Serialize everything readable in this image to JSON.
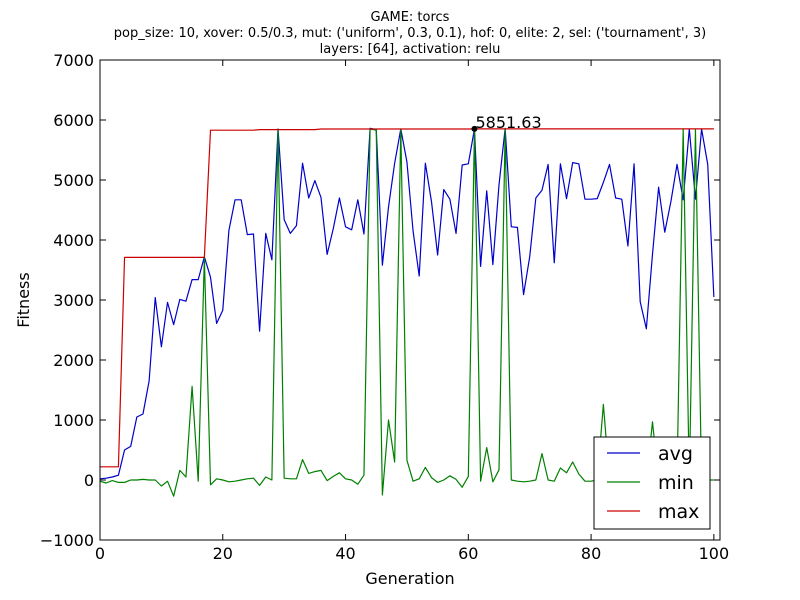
{
  "chart_data": {
    "type": "line",
    "title_lines": [
      "GAME: torcs",
      "pop_size: 10, xover: 0.5/0.3, mut: ('uniform', 0.3, 0.1), hof: 0, elite: 2, sel: ('tournament', 3)",
      "layers: [64], activation: relu"
    ],
    "xlabel": "Generation",
    "ylabel": "Fitness",
    "xlim": [
      0,
      101
    ],
    "ylim": [
      -1000,
      7000
    ],
    "xticks": [
      0,
      20,
      40,
      60,
      80,
      100
    ],
    "yticks": [
      -1000,
      0,
      1000,
      2000,
      3000,
      4000,
      5000,
      6000,
      7000
    ],
    "ytick_labels": [
      "−1000",
      "0",
      "1000",
      "2000",
      "3000",
      "4000",
      "5000",
      "6000",
      "7000"
    ],
    "grid": false,
    "legend_position": "lower-right",
    "x": [
      0,
      1,
      2,
      3,
      4,
      5,
      6,
      7,
      8,
      9,
      10,
      11,
      12,
      13,
      14,
      15,
      16,
      17,
      18,
      19,
      20,
      21,
      22,
      23,
      24,
      25,
      26,
      27,
      28,
      29,
      30,
      31,
      32,
      33,
      34,
      35,
      36,
      37,
      38,
      39,
      40,
      41,
      42,
      43,
      44,
      45,
      46,
      47,
      48,
      49,
      50,
      51,
      52,
      53,
      54,
      55,
      56,
      57,
      58,
      59,
      60,
      61,
      62,
      63,
      64,
      65,
      66,
      67,
      68,
      69,
      70,
      71,
      72,
      73,
      74,
      75,
      76,
      77,
      78,
      79,
      80,
      81,
      82,
      83,
      84,
      85,
      86,
      87,
      88,
      89,
      90,
      91,
      92,
      93,
      94,
      95,
      96,
      97,
      98,
      99,
      100
    ],
    "series": [
      {
        "name": "avg",
        "color": "#0000cc",
        "values": [
          20,
          30,
          50,
          80,
          500,
          560,
          1050,
          1100,
          1650,
          3040,
          2220,
          2960,
          2590,
          3010,
          2980,
          3340,
          3340,
          3720,
          3380,
          2610,
          2830,
          4160,
          4670,
          4670,
          4090,
          4100,
          2480,
          4110,
          3670,
          5850,
          4340,
          4110,
          4240,
          5280,
          4700,
          4990,
          4710,
          3760,
          4190,
          4700,
          4220,
          4170,
          4670,
          4100,
          5860,
          5840,
          3580,
          4550,
          5280,
          5850,
          5300,
          4150,
          3400,
          5280,
          4640,
          3750,
          4840,
          4680,
          4110,
          5250,
          5270,
          5850,
          3560,
          4820,
          3590,
          4920,
          5860,
          4220,
          4210,
          3090,
          3720,
          4700,
          4830,
          5260,
          3620,
          5270,
          4690,
          5290,
          5270,
          4680,
          4680,
          4690,
          4960,
          5260,
          4700,
          4680,
          3900,
          5270,
          2970,
          2520,
          3760,
          4880,
          4130,
          4640,
          5260,
          4670,
          5850,
          4680,
          5850,
          5260,
          3050
        ]
      },
      {
        "name": "min",
        "color": "#008000",
        "values": [
          -20,
          -50,
          -10,
          -40,
          -40,
          0,
          0,
          10,
          0,
          0,
          -100,
          -20,
          -270,
          160,
          50,
          1560,
          -20,
          3700,
          -80,
          20,
          0,
          -30,
          -20,
          0,
          20,
          30,
          -90,
          50,
          0,
          5840,
          30,
          20,
          20,
          340,
          110,
          140,
          160,
          -10,
          60,
          120,
          20,
          0,
          -70,
          80,
          5850,
          5830,
          -250,
          1000,
          300,
          5840,
          330,
          -20,
          20,
          210,
          40,
          -40,
          0,
          70,
          10,
          -120,
          60,
          5850,
          -20,
          540,
          -30,
          170,
          5840,
          0,
          -20,
          -30,
          -20,
          0,
          440,
          0,
          -20,
          200,
          120,
          300,
          100,
          -20,
          -20,
          0,
          1260,
          0,
          -60,
          -40,
          -20,
          -30,
          0,
          -40,
          970,
          -20,
          0,
          -40,
          40,
          5850,
          -30,
          5840,
          -30,
          0,
          0
        ]
      },
      {
        "name": "max",
        "color": "#cc0000",
        "values": [
          220,
          220,
          220,
          220,
          3710,
          3710,
          3710,
          3710,
          3710,
          3710,
          3710,
          3710,
          3710,
          3710,
          3710,
          3710,
          3710,
          3710,
          5830,
          5830,
          5830,
          5830,
          5830,
          5830,
          5830,
          5830,
          5840,
          5840,
          5840,
          5840,
          5840,
          5840,
          5840,
          5840,
          5840,
          5840,
          5850,
          5850,
          5850,
          5850,
          5850,
          5850,
          5850,
          5850,
          5850,
          5850,
          5850,
          5850,
          5850,
          5850,
          5850,
          5850,
          5850,
          5850,
          5850,
          5850,
          5850,
          5850,
          5850,
          5850,
          5850,
          5851.63,
          5851.63,
          5851.63,
          5851.63,
          5851.63,
          5851.63,
          5851.63,
          5851.63,
          5851.63,
          5851.63,
          5851.63,
          5851.63,
          5851.63,
          5851.63,
          5851.63,
          5851.63,
          5851.63,
          5851.63,
          5851.63,
          5851.63,
          5851.63,
          5851.63,
          5851.63,
          5851.63,
          5851.63,
          5851.63,
          5851.63,
          5851.63,
          5851.63,
          5851.63,
          5851.63,
          5851.63,
          5851.63,
          5851.63,
          5851.63,
          5851.63,
          5851.63,
          5851.63,
          5851.63,
          5851.63
        ]
      }
    ],
    "annotation": {
      "text": "5851.63",
      "x": 61,
      "y": 5851.63
    }
  }
}
